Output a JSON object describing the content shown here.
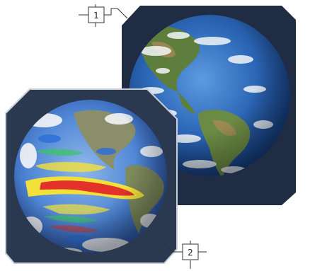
{
  "callouts": [
    {
      "label": "1"
    },
    {
      "label": "2"
    }
  ],
  "panels": [
    {
      "subject": "earth-photo-americas",
      "frame_color": "#1f2c44"
    },
    {
      "subject": "earth-sea-temperature-map",
      "frame_color": "#2a3850"
    }
  ],
  "colors": {
    "ocean_deep": "#1b4f9c",
    "ocean_light": "#3f86d6",
    "land_green": "#5d7e3c",
    "land_brown": "#a88a55",
    "cloud": "#f4f6f8",
    "heat_red": "#e2322a",
    "heat_yellow": "#f3e13a",
    "cool_blue": "#2f6fd6"
  }
}
